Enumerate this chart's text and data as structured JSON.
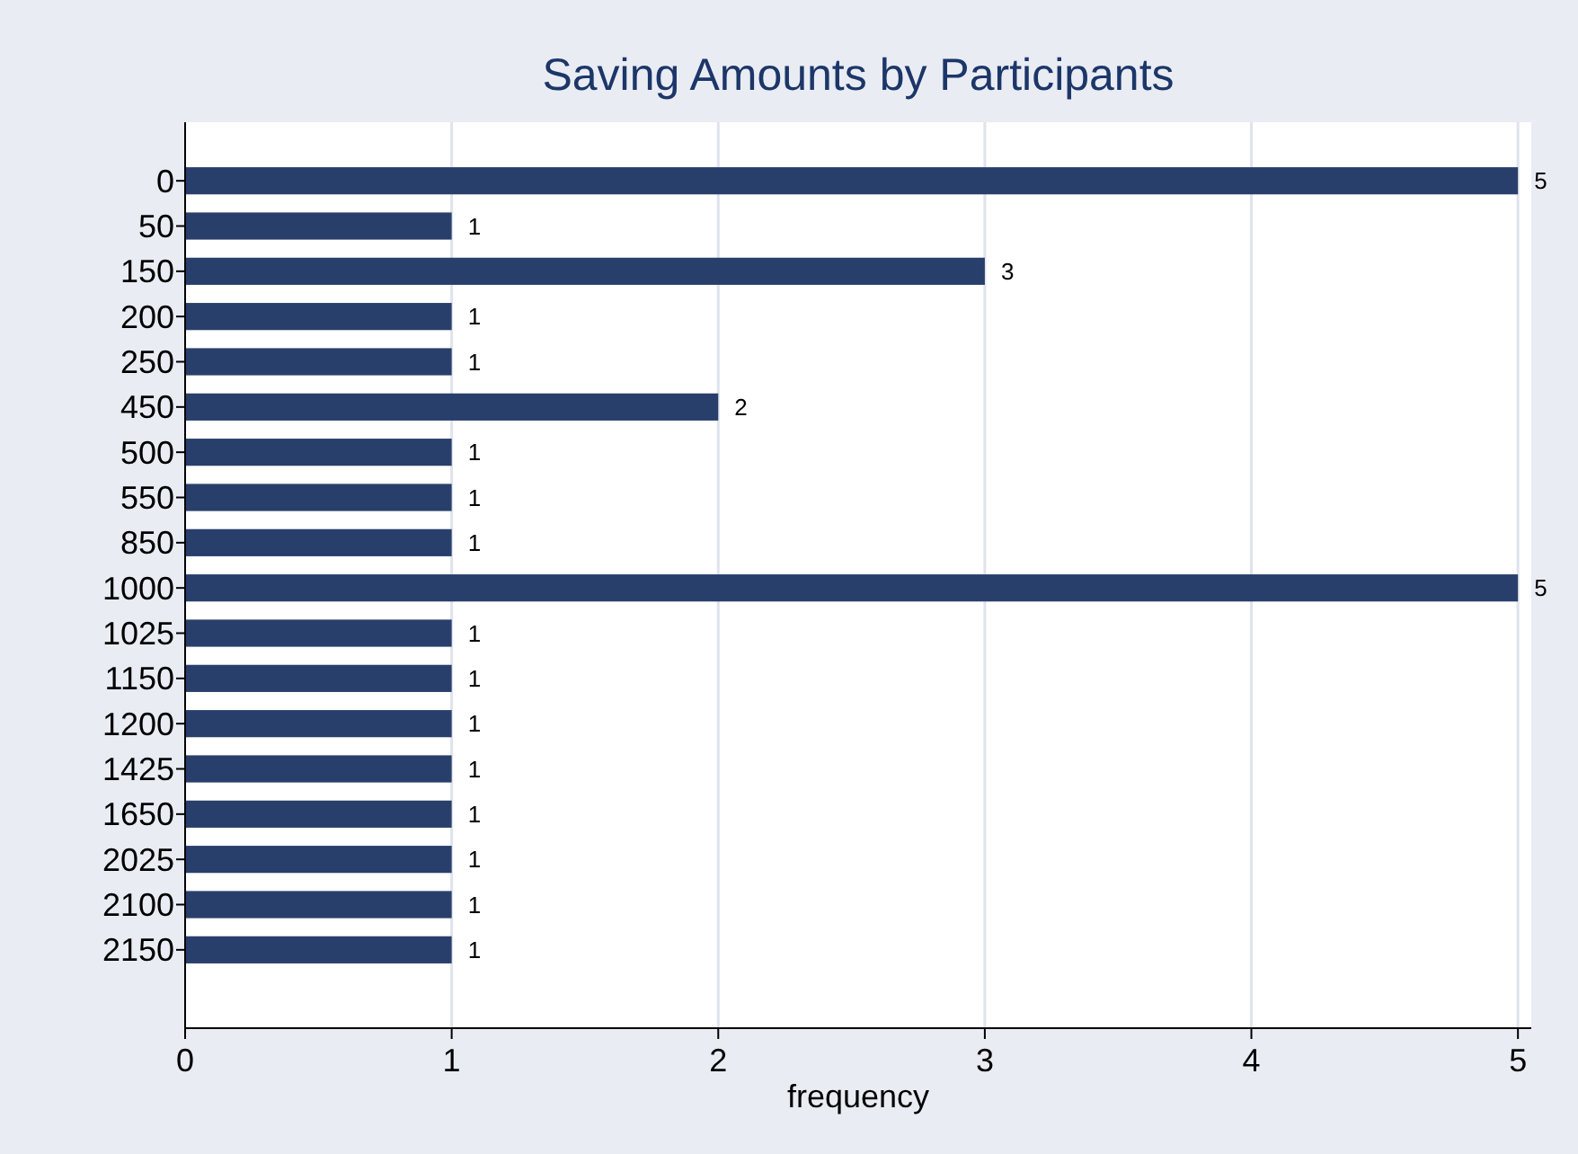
{
  "chart_data": {
    "type": "bar",
    "orientation": "horizontal",
    "title": "Saving Amounts by Participants",
    "xlabel": "frequency",
    "categories": [
      "0",
      "50",
      "150",
      "200",
      "250",
      "450",
      "500",
      "550",
      "850",
      "1000",
      "1025",
      "1150",
      "1200",
      "1425",
      "1650",
      "2025",
      "2100",
      "2150"
    ],
    "values": [
      5,
      1,
      3,
      1,
      1,
      2,
      1,
      1,
      1,
      5,
      1,
      1,
      1,
      1,
      1,
      1,
      1,
      1
    ],
    "color": "#293f6b",
    "xlim": [
      0,
      5.05
    ],
    "xticks": [
      0,
      1,
      2,
      3,
      4,
      5
    ],
    "grid": "x",
    "data_labels": true
  }
}
